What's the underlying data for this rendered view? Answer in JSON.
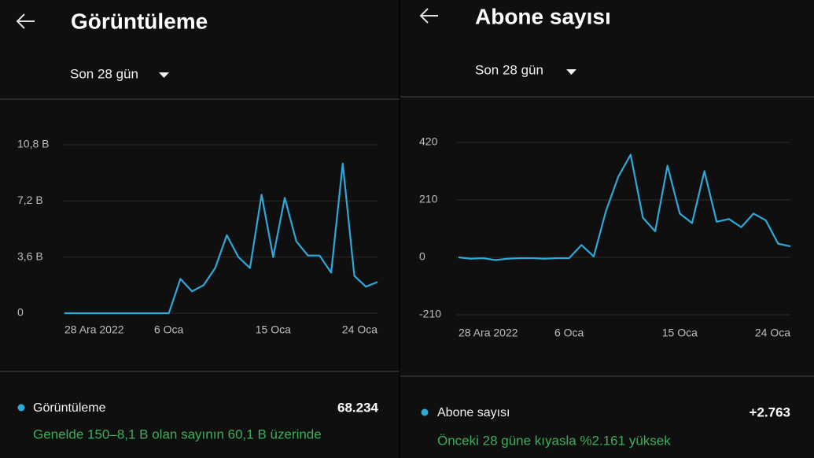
{
  "panels": [
    {
      "title": "Görüntüleme",
      "period": "Son 28 gün",
      "total": "68.234",
      "note": "Genelde 150–8,1 B olan sayının 60,1 B üzerinde"
    },
    {
      "title": "Abone sayısı",
      "period": "Son 28 gün",
      "total": "+2.763",
      "note": "Önceki 28 güne kıyasla %2.161 yüksek"
    }
  ],
  "chart_data": [
    {
      "type": "line",
      "categories": [
        "28 Ara 2022",
        null,
        null,
        null,
        null,
        null,
        null,
        null,
        null,
        "6 Oca",
        null,
        null,
        null,
        null,
        null,
        null,
        null,
        null,
        "15 Oca",
        null,
        null,
        null,
        null,
        null,
        null,
        null,
        null,
        "24 Oca"
      ],
      "series": [
        {
          "name": "Görüntüleme",
          "color": "#2ea8d8",
          "values": [
            0,
            0,
            0,
            0,
            0,
            0,
            0,
            0,
            0,
            0,
            2.2,
            1.4,
            1.8,
            2.9,
            5.0,
            3.6,
            2.9,
            7.6,
            3.6,
            7.4,
            4.6,
            3.7,
            3.7,
            2.6,
            9.6,
            2.4,
            1.7,
            2.0
          ]
        }
      ],
      "ylim": [
        0,
        10.8
      ],
      "yticks": [
        0,
        {
          "value": 3.6,
          "label": "3,6 B"
        },
        {
          "value": 7.2,
          "label": "7,2 B"
        },
        {
          "value": 10.8,
          "label": "10,8 B"
        }
      ],
      "grid": true
    },
    {
      "type": "line",
      "categories": [
        "28 Ara 2022",
        null,
        null,
        null,
        null,
        null,
        null,
        null,
        null,
        "6 Oca",
        null,
        null,
        null,
        null,
        null,
        null,
        null,
        null,
        "15 Oca",
        null,
        null,
        null,
        null,
        null,
        null,
        null,
        null,
        "24 Oca"
      ],
      "series": [
        {
          "name": "Abone sayısı",
          "color": "#2ea8d8",
          "values": [
            0,
            -5,
            -3,
            -10,
            -5,
            -3,
            -3,
            -5,
            -3,
            -3,
            45,
            3,
            170,
            295,
            375,
            145,
            95,
            335,
            160,
            125,
            315,
            130,
            140,
            110,
            160,
            135,
            50,
            40
          ]
        }
      ],
      "ylim": [
        -210,
        420
      ],
      "yticks": [
        -210,
        0,
        210,
        420
      ],
      "grid": true
    }
  ]
}
